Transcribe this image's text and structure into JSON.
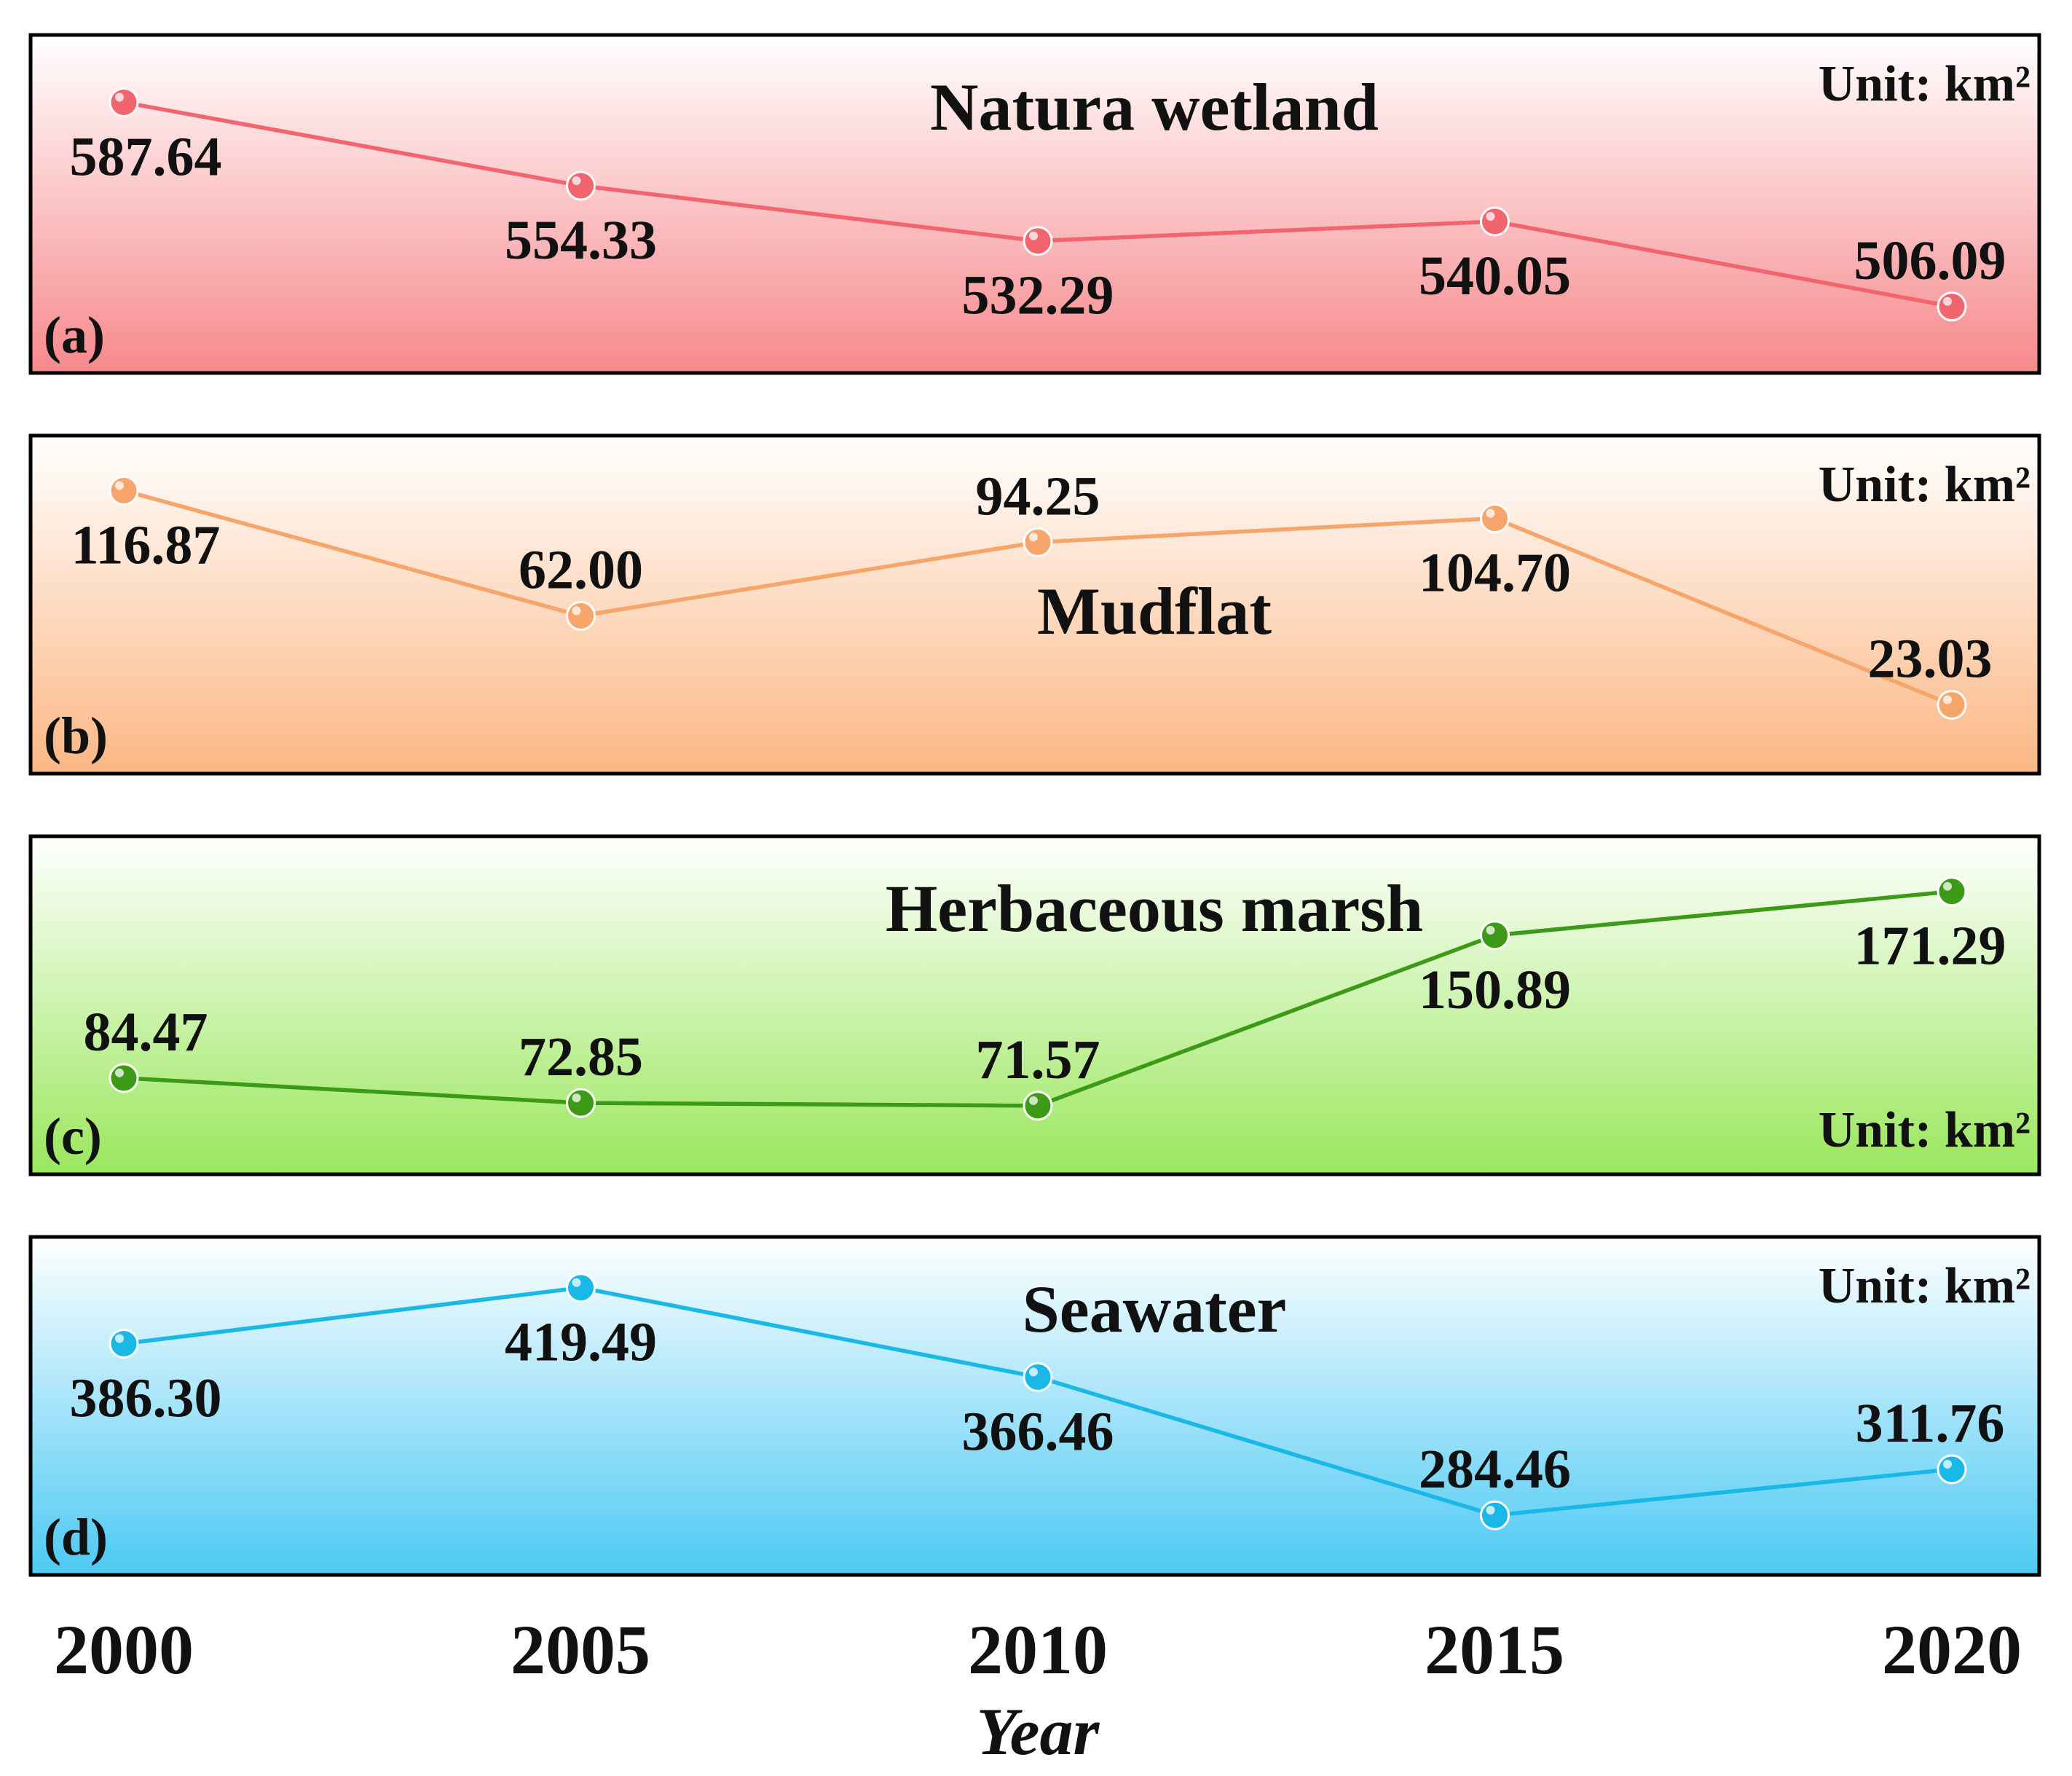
{
  "chart_data": [
    {
      "type": "line",
      "panel_label": "(a)",
      "title": "Natura wetland",
      "unit": "Unit: km²",
      "x": [
        2000,
        2005,
        2010,
        2015,
        2020
      ],
      "values": [
        587.64,
        554.33,
        532.29,
        540.05,
        506.09
      ],
      "labels": [
        "587.64",
        "554.33",
        "532.29",
        "540.05",
        "506.09"
      ],
      "ylim": [
        497,
        600
      ],
      "color": "#f2646e",
      "bg_top": "#ffffff",
      "bg_bottom": "#f6898c",
      "title_position": "top-center",
      "unit_position": "top-right",
      "label_offsets": [
        "below",
        "below",
        "below",
        "below",
        "above"
      ]
    },
    {
      "type": "line",
      "panel_label": "(b)",
      "title": "Mudflat",
      "unit": "Unit: km²",
      "x": [
        2000,
        2005,
        2010,
        2015,
        2020
      ],
      "values": [
        116.87,
        62.0,
        94.25,
        104.7,
        23.03
      ],
      "labels": [
        "116.87",
        "62.00",
        "94.25",
        "104.70",
        "23.03"
      ],
      "ylim": [
        12,
        125
      ],
      "color": "#f7a66b",
      "bg_top": "#ffffff",
      "bg_bottom": "#fbb784",
      "title_position": "center",
      "unit_position": "top-right",
      "label_offsets": [
        "below",
        "above",
        "above",
        "below",
        "above"
      ]
    },
    {
      "type": "line",
      "panel_label": "(c)",
      "title": "Herbaceous marsh",
      "unit": "Unit: km²",
      "x": [
        2000,
        2005,
        2010,
        2015,
        2020
      ],
      "values": [
        84.47,
        72.85,
        71.57,
        150.89,
        171.29
      ],
      "labels": [
        "84.47",
        "72.85",
        "71.57",
        "150.89",
        "171.29"
      ],
      "ylim": [
        60,
        180
      ],
      "color": "#3d9a16",
      "bg_top": "#ffffff",
      "bg_bottom": "#9ae75d",
      "title_position": "top-center",
      "unit_position": "bottom-right",
      "label_offsets": [
        "above",
        "above",
        "above",
        "below",
        "below"
      ]
    },
    {
      "type": "line",
      "panel_label": "(d)",
      "title": "Seawater",
      "unit": "Unit: km²",
      "x": [
        2000,
        2005,
        2010,
        2015,
        2020
      ],
      "values": [
        386.3,
        419.49,
        366.46,
        284.46,
        311.76
      ],
      "labels": [
        "386.30",
        "419.49",
        "366.46",
        "284.46",
        "311.76"
      ],
      "ylim": [
        275,
        428
      ],
      "color": "#1ab8e6",
      "bg_top": "#ffffff",
      "bg_bottom": "#4cc9f3",
      "title_position": "top-center",
      "unit_position": "top-right",
      "label_offsets": [
        "below",
        "below",
        "below",
        "above",
        "above"
      ]
    }
  ],
  "x_axis": {
    "ticks": [
      "2000",
      "2005",
      "2010",
      "2015",
      "2020"
    ],
    "title": "Year"
  }
}
